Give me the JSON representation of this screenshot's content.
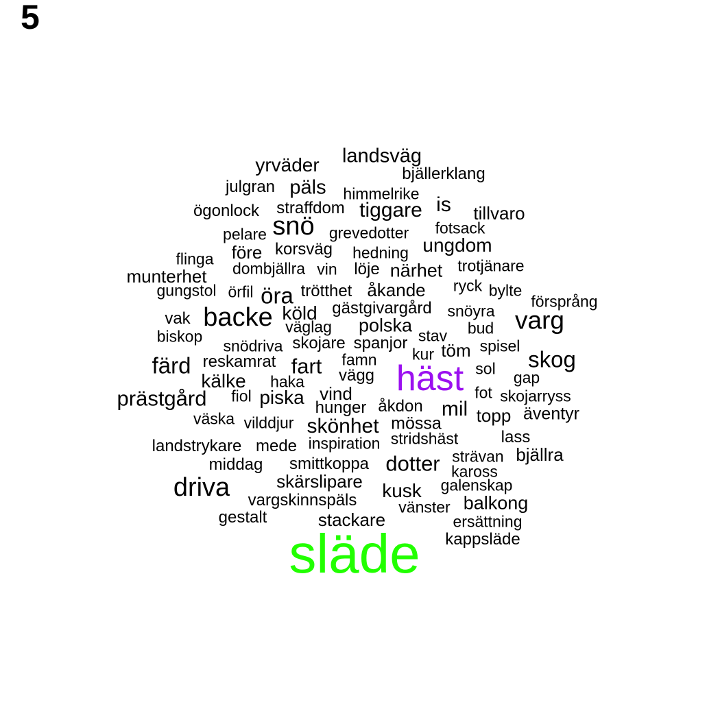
{
  "panel_label": "5",
  "colors": {
    "default": "#000000",
    "highlight_green": "#22ff00",
    "highlight_purple": "#9b10f0"
  },
  "words": [
    {
      "text": "släde",
      "color": "#22ff00"
    },
    {
      "text": "häst",
      "color": "#9b10f0"
    },
    {
      "text": "landsväg"
    },
    {
      "text": "yrväder"
    },
    {
      "text": "bjällerklang"
    },
    {
      "text": "julgran"
    },
    {
      "text": "päls"
    },
    {
      "text": "himmelrike"
    },
    {
      "text": "is"
    },
    {
      "text": "ögonlock"
    },
    {
      "text": "straffdom"
    },
    {
      "text": "tiggare"
    },
    {
      "text": "tillvaro"
    },
    {
      "text": "snö"
    },
    {
      "text": "fotsack"
    },
    {
      "text": "pelare"
    },
    {
      "text": "grevedotter"
    },
    {
      "text": "ungdom"
    },
    {
      "text": "före"
    },
    {
      "text": "korsväg"
    },
    {
      "text": "hedning"
    },
    {
      "text": "flinga"
    },
    {
      "text": "trotjänare"
    },
    {
      "text": "dombjällra"
    },
    {
      "text": "vin"
    },
    {
      "text": "löje"
    },
    {
      "text": "närhet"
    },
    {
      "text": "munterhet"
    },
    {
      "text": "ryck"
    },
    {
      "text": "gungstol"
    },
    {
      "text": "örfil"
    },
    {
      "text": "öra"
    },
    {
      "text": "trötthet"
    },
    {
      "text": "åkande"
    },
    {
      "text": "bylte"
    },
    {
      "text": "försprång"
    },
    {
      "text": "gästgivargård"
    },
    {
      "text": "köld"
    },
    {
      "text": "snöyra"
    },
    {
      "text": "vak"
    },
    {
      "text": "backe"
    },
    {
      "text": "varg"
    },
    {
      "text": "väglag"
    },
    {
      "text": "polska"
    },
    {
      "text": "bud"
    },
    {
      "text": "biskop"
    },
    {
      "text": "stav"
    },
    {
      "text": "snödriva"
    },
    {
      "text": "skojare"
    },
    {
      "text": "spanjor"
    },
    {
      "text": "spisel"
    },
    {
      "text": "töm"
    },
    {
      "text": "kur"
    },
    {
      "text": "skog"
    },
    {
      "text": "färd"
    },
    {
      "text": "reskamrat"
    },
    {
      "text": "famn"
    },
    {
      "text": "fart"
    },
    {
      "text": "sol"
    },
    {
      "text": "vägg"
    },
    {
      "text": "gap"
    },
    {
      "text": "kälke"
    },
    {
      "text": "haka"
    },
    {
      "text": "fot"
    },
    {
      "text": "vind"
    },
    {
      "text": "skojarryss"
    },
    {
      "text": "prästgård"
    },
    {
      "text": "fiol"
    },
    {
      "text": "piska"
    },
    {
      "text": "åkdon"
    },
    {
      "text": "mil"
    },
    {
      "text": "hunger"
    },
    {
      "text": "äventyr"
    },
    {
      "text": "topp"
    },
    {
      "text": "väska"
    },
    {
      "text": "vilddjur"
    },
    {
      "text": "skönhet"
    },
    {
      "text": "mössa"
    },
    {
      "text": "lass"
    },
    {
      "text": "stridshäst"
    },
    {
      "text": "landstrykare"
    },
    {
      "text": "mede"
    },
    {
      "text": "inspiration"
    },
    {
      "text": "bjällra"
    },
    {
      "text": "strävan"
    },
    {
      "text": "middag"
    },
    {
      "text": "smittkoppa"
    },
    {
      "text": "dotter"
    },
    {
      "text": "kaross"
    },
    {
      "text": "skärslipare"
    },
    {
      "text": "driva"
    },
    {
      "text": "galenskap"
    },
    {
      "text": "kusk"
    },
    {
      "text": "vargskinnspäls"
    },
    {
      "text": "balkong"
    },
    {
      "text": "vänster"
    },
    {
      "text": "gestalt"
    },
    {
      "text": "stackare"
    },
    {
      "text": "ersättning"
    },
    {
      "text": "kappsläde"
    }
  ]
}
